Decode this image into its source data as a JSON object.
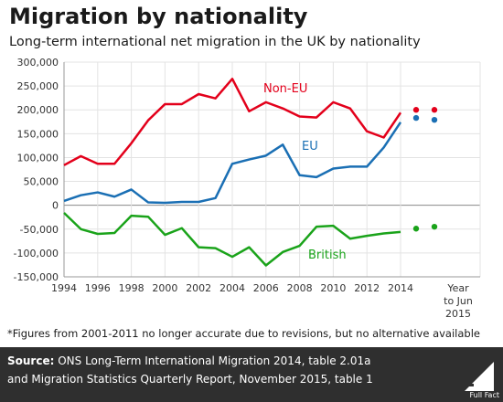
{
  "title": "Migration by nationality",
  "subtitle": "Long-term international net migration in the UK by nationality",
  "footnote": "*Figures from 2001-2011 no longer accurate due to revisions, but no alternative available",
  "source": {
    "label": "Source:",
    "line1_rest": " ONS Long-Term International Migration 2014, table 2.01a",
    "line2": "and Migration Statistics Quarterly Report, November 2015, table 1"
  },
  "logo_text": "Full Fact",
  "colors": {
    "non_eu": "#e3001b",
    "eu": "#1a6fb4",
    "british": "#1aa31a",
    "axis": "#999999",
    "grid": "#e3e3e3"
  },
  "chart_data": {
    "type": "line",
    "title": "Migration by nationality",
    "subtitle": "Long-term international net migration in the UK by nationality",
    "x": [
      1994,
      1995,
      1996,
      1997,
      1998,
      1999,
      2000,
      2001,
      2002,
      2003,
      2004,
      2005,
      2006,
      2007,
      2008,
      2009,
      2010,
      2011,
      2012,
      2013,
      2014
    ],
    "x_ticks": [
      "1994",
      "1996",
      "1998",
      "2000",
      "2002",
      "2004",
      "2006",
      "2008",
      "2010",
      "2012",
      "2014"
    ],
    "extra_tick_label": [
      "Year",
      "to Jun",
      "2015"
    ],
    "ylim": [
      -150000,
      300000
    ],
    "y_ticks": [
      "300,000",
      "250,000",
      "200,000",
      "150,000",
      "100,000",
      "50,000",
      "0",
      "-50,000",
      "-100,000",
      "-150,000"
    ],
    "grid": true,
    "series": [
      {
        "name": "Non-EU",
        "values": [
          84000,
          103000,
          87000,
          87000,
          130000,
          178000,
          212000,
          212000,
          233000,
          224000,
          265000,
          197000,
          216000,
          203000,
          186000,
          184000,
          216000,
          203000,
          155000,
          142000,
          194000
        ],
        "projected": [
          200000,
          200000
        ]
      },
      {
        "name": "EU",
        "values": [
          9000,
          21000,
          27000,
          18000,
          33000,
          6000,
          5000,
          7000,
          7000,
          15000,
          87000,
          96000,
          104000,
          127000,
          63000,
          59000,
          77000,
          81000,
          81000,
          121000,
          174000
        ],
        "projected": [
          183000,
          179000
        ]
      },
      {
        "name": "British",
        "values": [
          -16000,
          -50000,
          -60000,
          -58000,
          -22000,
          -24000,
          -62000,
          -48000,
          -88000,
          -90000,
          -108000,
          -88000,
          -126000,
          -98000,
          -85000,
          -45000,
          -43000,
          -70000,
          -64000,
          -59000,
          -56000
        ],
        "projected": [
          -49000,
          -45000
        ]
      }
    ]
  }
}
